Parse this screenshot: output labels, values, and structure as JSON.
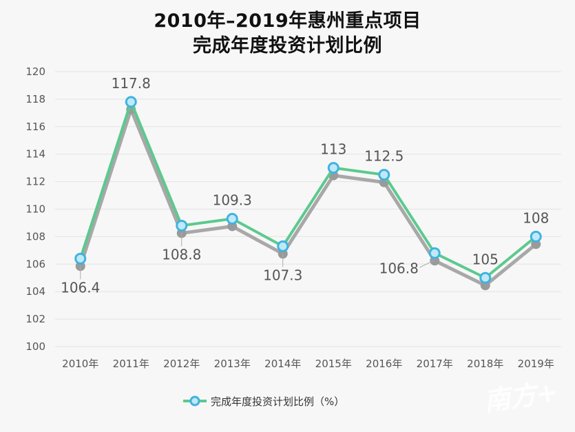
{
  "chart_data": {
    "type": "line",
    "title_line1": "2010年–2019年惠州重点项目",
    "title_line2": "完成年度投资计划比例",
    "categories": [
      "2010年",
      "2011年",
      "2012年",
      "2013年",
      "2014年",
      "2015年",
      "2016年",
      "2017年",
      "2018年",
      "2019年"
    ],
    "series": [
      {
        "name": "完成年度投资计划比例（%）",
        "values": [
          106.4,
          117.8,
          108.8,
          109.3,
          107.3,
          113,
          112.5,
          106.8,
          105,
          108
        ]
      }
    ],
    "data_labels": [
      "106.4",
      "117.8",
      "108.8",
      "109.3",
      "107.3",
      "113",
      "112.5",
      "106.8",
      "105",
      "108"
    ],
    "ylim": [
      100,
      120
    ],
    "yticks": [
      100,
      102,
      104,
      106,
      108,
      110,
      112,
      114,
      116,
      118,
      120
    ],
    "xlabel": "",
    "ylabel": "",
    "grid": true,
    "legend_position": "bottom",
    "colors": {
      "line": "#5cc98e",
      "marker_fill": "#bfe9f7",
      "marker_stroke": "#3fb3e0",
      "shadow": "#a8a8a8"
    }
  },
  "watermark": "南方+"
}
